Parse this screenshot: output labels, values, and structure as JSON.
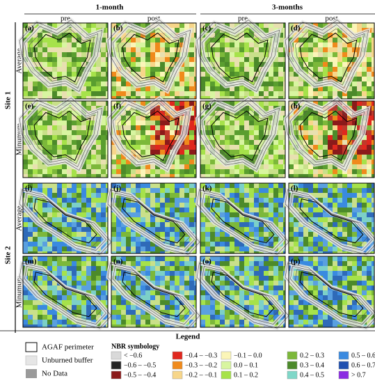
{
  "columns": [
    {
      "label": "1-month",
      "sub": [
        "pre",
        "post"
      ]
    },
    {
      "label": "3-months",
      "sub": [
        "pre",
        "post"
      ]
    }
  ],
  "sites": [
    {
      "label": "Site 1",
      "rows": [
        {
          "label": "Average",
          "panels": [
            "(a)",
            "(b)",
            "(c)",
            "(d)"
          ]
        },
        {
          "label": "Minumum",
          "panels": [
            "(e)",
            "(f)",
            "(g)",
            "(h)"
          ]
        }
      ]
    },
    {
      "label": "Site 2",
      "rows": [
        {
          "label": "Average",
          "panels": [
            "(i)",
            "(j)",
            "(k)",
            "(l)"
          ]
        },
        {
          "label": "Minumum",
          "panels": [
            "(m)",
            "(n)",
            "(o)",
            "(p)"
          ]
        }
      ]
    }
  ],
  "legend": {
    "title": "Legend",
    "perimeter": [
      "AGAF perimeter",
      "Unburned buffer",
      "No Data"
    ],
    "nbr_title": "NBR symbology",
    "classes": [
      {
        "label": "< −0.6",
        "color": "#d9d9d9"
      },
      {
        "label": "−0.6 – −0.5",
        "color": "#262626"
      },
      {
        "label": "−0.5 – −0.4",
        "color": "#8b1a1a"
      },
      {
        "label": "−0.4 – −0.3",
        "color": "#e0281e"
      },
      {
        "label": "−0.3 – −0.2",
        "color": "#f08a1c"
      },
      {
        "label": "−0.2 – −0.1",
        "color": "#f7d68a"
      },
      {
        "label": "−0.1 – 0.0",
        "color": "#fbf5b8"
      },
      {
        "label": "0.0 – 0.1",
        "color": "#d8f5a0"
      },
      {
        "label": "0.1 – 0.2",
        "color": "#a6e24a"
      },
      {
        "label": "0.2 – 0.3",
        "color": "#7cb83a"
      },
      {
        "label": "0.3 – 0.4",
        "color": "#4c8a2a"
      },
      {
        "label": "0.4 – 0.5",
        "color": "#7fd7c8"
      },
      {
        "label": "0.5 – 0.6",
        "color": "#3a8ae0"
      },
      {
        "label": "0.6 – 0.7",
        "color": "#2050b0"
      },
      {
        "label": "> 0.7",
        "color": "#8a2be2"
      }
    ]
  }
}
